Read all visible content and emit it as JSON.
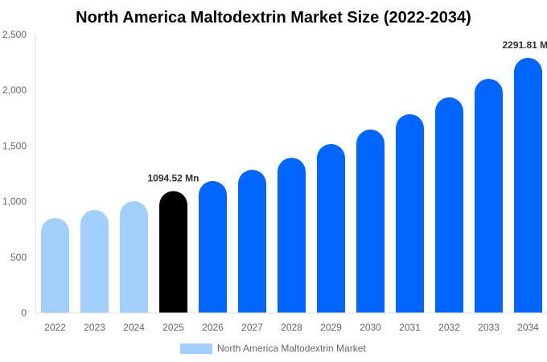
{
  "chart_data": {
    "type": "bar",
    "title": "North America Maltodextrin Market Size (2022-2034)",
    "categories": [
      "2022",
      "2023",
      "2024",
      "2025",
      "2026",
      "2027",
      "2028",
      "2029",
      "2030",
      "2031",
      "2032",
      "2033",
      "2034"
    ],
    "series": [
      {
        "name": "North America Maltodextrin Market",
        "values": [
          853,
          925,
          1004,
          1094.52,
          1185,
          1286,
          1394,
          1517,
          1647,
          1785,
          1936,
          2103,
          2291.81
        ]
      }
    ],
    "bar_colors": [
      "#a3cffd",
      "#a3cffd",
      "#a3cffd",
      "#000000",
      "#0066ff",
      "#0066ff",
      "#0066ff",
      "#0066ff",
      "#0066ff",
      "#0066ff",
      "#0066ff",
      "#0066ff",
      "#0066ff"
    ],
    "data_labels": [
      {
        "index": 3,
        "text": "1094.52 Mn"
      },
      {
        "index": 12,
        "text": "2291.81 Mn"
      }
    ],
    "yticks": [
      "0",
      "500",
      "1,000",
      "1,500",
      "2,000",
      "2,500"
    ],
    "ylim": [
      0,
      2500
    ],
    "grid": false,
    "legend_placement": "bottom",
    "legend_color": "#a3cffd"
  }
}
